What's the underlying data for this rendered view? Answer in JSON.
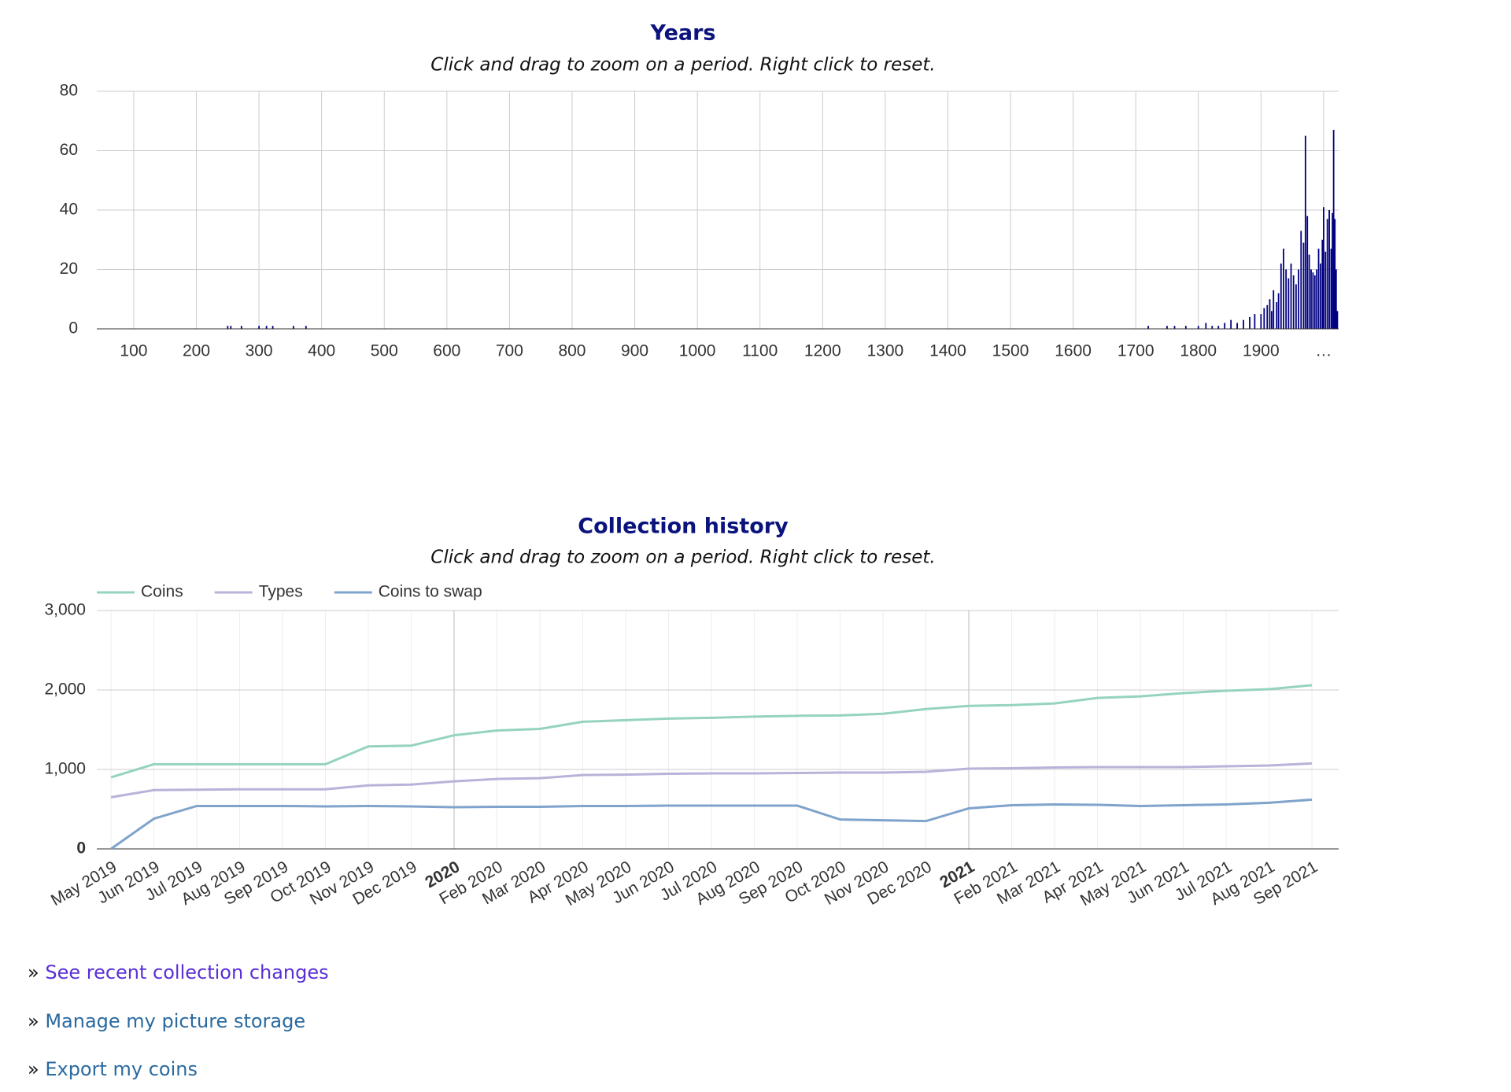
{
  "chart_data": [
    {
      "type": "bar",
      "title": "Years",
      "subtitle": "Click and drag to zoom on a period. Right click to reset.",
      "color": "#000080",
      "x": [
        250,
        255,
        272,
        300,
        312,
        322,
        355,
        375,
        1720,
        1750,
        1762,
        1780,
        1800,
        1812,
        1822,
        1832,
        1842,
        1852,
        1862,
        1872,
        1882,
        1890,
        1900,
        1905,
        1910,
        1914,
        1917,
        1920,
        1925,
        1928,
        1932,
        1936,
        1940,
        1944,
        1948,
        1952,
        1956,
        1960,
        1964,
        1968,
        1971,
        1974,
        1977,
        1980,
        1983,
        1986,
        1989,
        1992,
        1995,
        1998,
        2000,
        2003,
        2006,
        2009,
        2012,
        2014,
        2016,
        2018,
        2020,
        2022
      ],
      "values": [
        1,
        1,
        1,
        1,
        1,
        1,
        1,
        1,
        1,
        1,
        1,
        1,
        1,
        2,
        1,
        1,
        2,
        3,
        2,
        3,
        4,
        5,
        5,
        7,
        8,
        10,
        6,
        13,
        9,
        12,
        22,
        27,
        20,
        17,
        22,
        18,
        15,
        20,
        33,
        29,
        65,
        38,
        25,
        20,
        19,
        18,
        20,
        27,
        22,
        30,
        41,
        26,
        37,
        40,
        27,
        39,
        67,
        37,
        20,
        6
      ],
      "xlim": [
        41,
        2024
      ],
      "xticks": [
        100,
        200,
        300,
        400,
        500,
        600,
        700,
        800,
        900,
        1000,
        1100,
        1200,
        1300,
        1400,
        1500,
        1600,
        1700,
        1800,
        1900,
        {
          "value": 2000,
          "label": "…"
        }
      ],
      "ylim": [
        0,
        80
      ],
      "yticks": [
        0,
        20,
        40,
        60,
        80
      ],
      "grid": true
    },
    {
      "type": "line",
      "title": "Collection history",
      "subtitle": "Click and drag to zoom on a period. Right click to reset.",
      "legend": "top-left",
      "categories": [
        "May 2019",
        "Jun 2019",
        "Jul 2019",
        "Aug 2019",
        "Sep 2019",
        "Oct 2019",
        "Nov 2019",
        "Dec 2019",
        "2020",
        "Feb 2020",
        "Mar 2020",
        "Apr 2020",
        "May 2020",
        "Jun 2020",
        "Jul 2020",
        "Aug 2020",
        "Sep 2020",
        "Oct 2020",
        "Nov 2020",
        "Dec 2020",
        "2021",
        "Feb 2021",
        "Mar 2021",
        "Apr 2021",
        "May 2021",
        "Jun 2021",
        "Jul 2021",
        "Aug 2021",
        "Sep 2021"
      ],
      "series": [
        {
          "name": "Coins",
          "color": "#95d3bf",
          "values": [
            900,
            1065,
            1065,
            1065,
            1065,
            1065,
            1290,
            1300,
            1430,
            1490,
            1510,
            1600,
            1620,
            1640,
            1650,
            1665,
            1675,
            1680,
            1700,
            1760,
            1800,
            1810,
            1830,
            1900,
            1920,
            1960,
            1990,
            2010,
            2060
          ]
        },
        {
          "name": "Types",
          "color": "#b9b2d9",
          "values": [
            650,
            740,
            745,
            750,
            750,
            750,
            800,
            810,
            850,
            880,
            890,
            930,
            935,
            945,
            950,
            950,
            955,
            960,
            960,
            970,
            1010,
            1015,
            1025,
            1030,
            1030,
            1030,
            1040,
            1050,
            1075
          ]
        },
        {
          "name": "Coins to swap",
          "color": "#7fa3cb",
          "values": [
            0,
            380,
            540,
            540,
            540,
            535,
            540,
            535,
            525,
            530,
            530,
            540,
            540,
            545,
            545,
            545,
            545,
            370,
            360,
            350,
            510,
            550,
            560,
            555,
            540,
            550,
            560,
            580,
            620
          ]
        }
      ],
      "ylim": [
        0,
        3000
      ],
      "yticks": [
        0,
        {
          "value": 1000,
          "label": "1,000"
        },
        {
          "value": 2000,
          "label": "2,000"
        },
        {
          "value": 3000,
          "label": "3,000"
        }
      ],
      "grid": true
    }
  ],
  "link_marker": "»",
  "links": [
    "See recent collection changes",
    "Manage my picture storage",
    "Export my coins"
  ]
}
